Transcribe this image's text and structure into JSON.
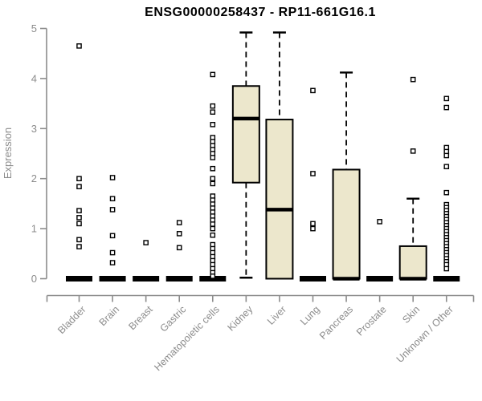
{
  "chart_data": {
    "type": "boxplot",
    "title": "ENSG00000258437 - RP11-661G16.1",
    "ylabel": "Expression",
    "xlabel": "",
    "ylim": [
      0,
      5
    ],
    "yticks": [
      0,
      1,
      2,
      3,
      4,
      5
    ],
    "grid": false,
    "legend": false,
    "categories": [
      "Bladder",
      "Brain",
      "Breast",
      "Gastric",
      "Hematopoietic cells",
      "Kidney",
      "Liver",
      "Lung",
      "Pancreas",
      "Prostate",
      "Skin",
      "Unknown / Other"
    ],
    "boxes": [
      {
        "category": "Bladder",
        "q1": 0,
        "median": 0,
        "q3": 0,
        "whisker_low": 0,
        "whisker_high": 0,
        "outliers": [
          4.65,
          2.0,
          1.84,
          1.36,
          1.22,
          1.1,
          0.78,
          0.64
        ]
      },
      {
        "category": "Brain",
        "q1": 0,
        "median": 0,
        "q3": 0,
        "whisker_low": 0,
        "whisker_high": 0,
        "outliers": [
          2.02,
          1.6,
          1.38,
          0.86,
          0.52,
          0.32
        ]
      },
      {
        "category": "Breast",
        "q1": 0,
        "median": 0,
        "q3": 0,
        "whisker_low": 0,
        "whisker_high": 0,
        "outliers": [
          0.72
        ]
      },
      {
        "category": "Gastric",
        "q1": 0,
        "median": 0,
        "q3": 0,
        "whisker_low": 0,
        "whisker_high": 0,
        "outliers": [
          1.12,
          0.9,
          0.62
        ]
      },
      {
        "category": "Hematopoietic cells",
        "q1": 0,
        "median": 0,
        "q3": 0,
        "whisker_low": 0,
        "whisker_high": 0,
        "outliers": [
          4.08,
          3.45,
          3.33,
          3.08,
          2.82,
          2.74,
          2.66,
          2.58,
          2.5,
          2.42,
          2.2,
          2.0,
          1.9,
          1.65,
          1.57,
          1.49,
          1.41,
          1.33,
          1.25,
          1.17,
          1.09,
          1.0,
          0.87,
          0.68,
          0.6,
          0.52,
          0.44,
          0.36,
          0.28,
          0.2,
          0.12,
          0.05
        ]
      },
      {
        "category": "Kidney",
        "q1": 1.92,
        "median": 3.2,
        "q3": 3.85,
        "whisker_low": 0.02,
        "whisker_high": 4.92,
        "outliers": []
      },
      {
        "category": "Liver",
        "q1": 0,
        "median": 1.38,
        "q3": 3.18,
        "whisker_low": 0,
        "whisker_high": 4.92,
        "outliers": []
      },
      {
        "category": "Lung",
        "q1": 0,
        "median": 0,
        "q3": 0,
        "whisker_low": 0,
        "whisker_high": 0,
        "outliers": [
          3.76,
          2.1,
          1.1,
          1.0
        ]
      },
      {
        "category": "Pancreas",
        "q1": 0,
        "median": 0,
        "q3": 2.18,
        "whisker_low": 0,
        "whisker_high": 4.12,
        "outliers": []
      },
      {
        "category": "Prostate",
        "q1": 0,
        "median": 0,
        "q3": 0,
        "whisker_low": 0,
        "whisker_high": 0,
        "outliers": [
          1.14
        ]
      },
      {
        "category": "Skin",
        "q1": 0,
        "median": 0,
        "q3": 0.65,
        "whisker_low": 0,
        "whisker_high": 1.6,
        "outliers": [
          3.98,
          2.55
        ]
      },
      {
        "category": "Unknown / Other",
        "q1": 0,
        "median": 0,
        "q3": 0,
        "whisker_low": 0,
        "whisker_high": 0,
        "outliers": [
          3.6,
          3.42,
          2.62,
          2.54,
          2.46,
          2.24,
          1.72,
          1.48,
          1.42,
          1.36,
          1.3,
          1.24,
          1.18,
          1.12,
          1.06,
          1.0,
          0.94,
          0.88,
          0.82,
          0.76,
          0.7,
          0.64,
          0.58,
          0.52,
          0.46,
          0.4,
          0.34,
          0.28,
          0.2
        ]
      }
    ],
    "colors": {
      "box_fill": "#ece7cc",
      "box_stroke": "#000000",
      "median": "#000000",
      "whisker": "#000000",
      "outlier_stroke": "#000000",
      "outlier_fill": "#ffffff",
      "axis": "#8c8c8c",
      "tick_label": "#8c8c8c",
      "title": "#000000",
      "background": "#ffffff"
    }
  }
}
